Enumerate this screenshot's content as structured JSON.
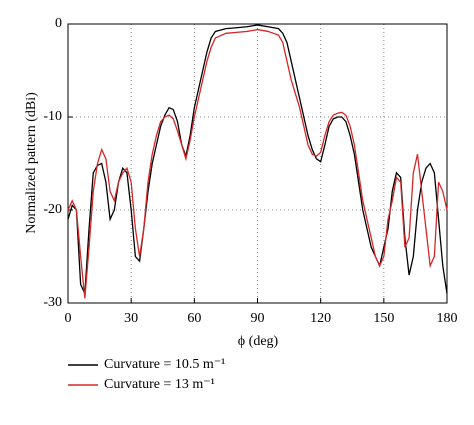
{
  "chart_data": {
    "type": "line",
    "xlabel": "ϕ (deg)",
    "ylabel": "Normalized pattern (dBi)",
    "x": [
      0,
      2,
      4,
      6,
      8,
      10,
      12,
      14,
      16,
      18,
      20,
      22,
      24,
      26,
      28,
      30,
      32,
      34,
      36,
      38,
      40,
      42,
      44,
      46,
      48,
      50,
      52,
      54,
      56,
      58,
      60,
      62,
      64,
      66,
      68,
      70,
      75,
      80,
      85,
      90,
      95,
      100,
      102,
      104,
      106,
      108,
      110,
      112,
      114,
      116,
      118,
      120,
      122,
      124,
      126,
      128,
      130,
      132,
      134,
      136,
      138,
      140,
      142,
      144,
      146,
      148,
      150,
      152,
      154,
      156,
      158,
      160,
      162,
      164,
      166,
      168,
      170,
      172,
      174,
      176,
      178,
      180
    ],
    "series": [
      {
        "name": "Curvature = 10.5 m⁻¹",
        "color": "#000000",
        "values": [
          -21,
          -19.5,
          -20,
          -28,
          -29,
          -22,
          -16,
          -15.2,
          -15,
          -17,
          -21,
          -20,
          -17,
          -15.5,
          -16,
          -20,
          -25,
          -25.5,
          -22,
          -18,
          -15,
          -13,
          -11,
          -9.8,
          -9,
          -9.2,
          -10.5,
          -13,
          -14.2,
          -12,
          -9,
          -7,
          -5,
          -3,
          -1.5,
          -0.8,
          -0.5,
          -0.4,
          -0.3,
          -0.1,
          -0.3,
          -0.5,
          -1,
          -2,
          -4,
          -6,
          -8,
          -10,
          -12,
          -13.5,
          -14.5,
          -14.8,
          -13,
          -11,
          -10.2,
          -10,
          -10,
          -10.5,
          -12,
          -14,
          -17,
          -20,
          -22,
          -24,
          -25,
          -26,
          -24,
          -22,
          -18,
          -16,
          -16.5,
          -23,
          -27,
          -25,
          -20,
          -17,
          -15.5,
          -15,
          -16,
          -21,
          -26,
          -29
        ]
      },
      {
        "name": "Curvature = 13 m⁻¹",
        "color": "#d62728",
        "values": [
          -20,
          -19,
          -20,
          -25,
          -29.5,
          -24,
          -18,
          -15,
          -13.5,
          -14.5,
          -18,
          -19,
          -17,
          -16,
          -15.5,
          -17,
          -22,
          -25,
          -22,
          -17,
          -14,
          -12,
          -10.5,
          -10,
          -9.8,
          -10.2,
          -11.5,
          -13,
          -14.5,
          -12.5,
          -10,
          -8,
          -6,
          -4,
          -2.5,
          -1.5,
          -1,
          -0.9,
          -0.8,
          -0.6,
          -0.8,
          -1.2,
          -2,
          -4,
          -6,
          -7.5,
          -9,
          -11,
          -13,
          -14,
          -14.2,
          -13.8,
          -12,
          -10.5,
          -9.8,
          -9.6,
          -9.5,
          -9.8,
          -11,
          -13,
          -16,
          -19,
          -21,
          -23,
          -25,
          -26,
          -25,
          -21,
          -19,
          -16.5,
          -17,
          -24,
          -23,
          -16,
          -14,
          -18,
          -22,
          -26,
          -25,
          -17,
          -18,
          -20
        ]
      }
    ],
    "xlim": [
      0,
      180
    ],
    "xticks": [
      0,
      30,
      60,
      90,
      120,
      150,
      180
    ],
    "ylim": [
      -30,
      0
    ],
    "yticks": [
      0,
      -10,
      -20,
      -30
    ],
    "grid": true
  }
}
